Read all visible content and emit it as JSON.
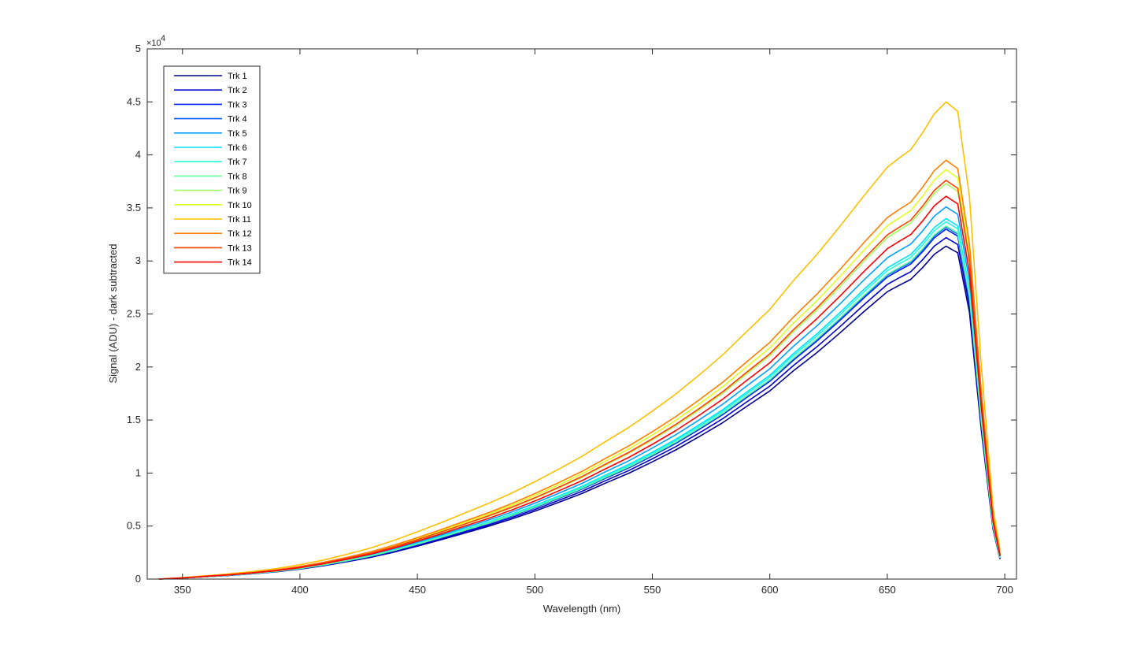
{
  "chart_data": {
    "type": "line",
    "title": "",
    "xlabel": "Wavelength (nm)",
    "ylabel": "Signal (ADU) - dark subtracted",
    "xlim": [
      335,
      705
    ],
    "ylim": [
      0,
      50000
    ],
    "y_multiplier_label": "×10",
    "y_multiplier_exp": "4",
    "x_ticks": [
      350,
      400,
      450,
      500,
      550,
      600,
      650,
      700
    ],
    "x_tick_labels": [
      "350",
      "400",
      "450",
      "500",
      "550",
      "600",
      "650",
      "700"
    ],
    "y_ticks": [
      0,
      5000,
      10000,
      15000,
      20000,
      25000,
      30000,
      35000,
      40000,
      45000,
      50000
    ],
    "y_tick_labels": [
      "0",
      "0.5",
      "1",
      "1.5",
      "2",
      "2.5",
      "3",
      "3.5",
      "4",
      "4.5",
      "5"
    ],
    "grid": false,
    "legend_position": "top-left",
    "base_profile": {
      "x": [
        340,
        350,
        360,
        370,
        380,
        390,
        400,
        410,
        420,
        430,
        440,
        450,
        460,
        470,
        480,
        490,
        500,
        510,
        520,
        530,
        540,
        550,
        560,
        570,
        580,
        590,
        600,
        610,
        620,
        630,
        640,
        650,
        655,
        660,
        665,
        670,
        675,
        680,
        685,
        690,
        695,
        698
      ],
      "values": [
        0.0,
        0.003,
        0.007,
        0.011,
        0.016,
        0.022,
        0.03,
        0.04,
        0.052,
        0.065,
        0.081,
        0.099,
        0.118,
        0.138,
        0.158,
        0.18,
        0.204,
        0.23,
        0.257,
        0.288,
        0.318,
        0.352,
        0.388,
        0.428,
        0.47,
        0.518,
        0.565,
        0.625,
        0.68,
        0.74,
        0.803,
        0.863,
        0.882,
        0.9,
        0.935,
        0.975,
        1.0,
        0.98,
        0.8,
        0.45,
        0.15,
        0.06
      ]
    },
    "series": [
      {
        "name": "Trk 1",
        "color": "#00008f",
        "peak": 31400
      },
      {
        "name": "Trk 2",
        "color": "#0000cf",
        "peak": 32200
      },
      {
        "name": "Trk 3",
        "color": "#0020ff",
        "peak": 33000
      },
      {
        "name": "Trk 4",
        "color": "#0060ff",
        "peak": 33200
      },
      {
        "name": "Trk 5",
        "color": "#00a0ff",
        "peak": 35100
      },
      {
        "name": "Trk 6",
        "color": "#00e0ff",
        "peak": 34000
      },
      {
        "name": "Trk 7",
        "color": "#20ffdf",
        "peak": 33700
      },
      {
        "name": "Trk 8",
        "color": "#60ff9f",
        "peak": 33300
      },
      {
        "name": "Trk 9",
        "color": "#9fff60",
        "peak": 37300
      },
      {
        "name": "Trk 10",
        "color": "#dfff20",
        "peak": 38600
      },
      {
        "name": "Trk 11",
        "color": "#ffbf00",
        "peak": 45000
      },
      {
        "name": "Trk 12",
        "color": "#ff7f00",
        "peak": 39500
      },
      {
        "name": "Trk 13",
        "color": "#ff4000",
        "peak": 37600
      },
      {
        "name": "Trk 14",
        "color": "#ff0000",
        "peak": 36100
      }
    ]
  }
}
